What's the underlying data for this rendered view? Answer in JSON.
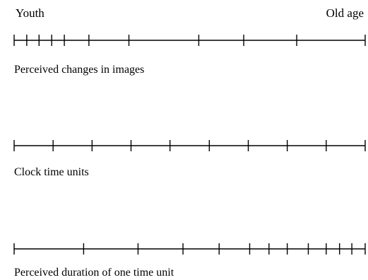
{
  "labels": {
    "start": "Youth",
    "end": "Old age"
  },
  "timelines": [
    {
      "caption": "Perceived changes in images",
      "tick_fractions": [
        0,
        0.036,
        0.071,
        0.107,
        0.143,
        0.213,
        0.327,
        0.526,
        0.654,
        0.805,
        1.0
      ]
    },
    {
      "caption": "Clock time units",
      "tick_fractions": [
        0,
        0.111,
        0.222,
        0.333,
        0.444,
        0.556,
        0.667,
        0.778,
        0.889,
        1.0
      ]
    },
    {
      "caption": "Perceived duration of one time unit",
      "tick_fractions": [
        0,
        0.198,
        0.353,
        0.481,
        0.584,
        0.671,
        0.726,
        0.778,
        0.838,
        0.889,
        0.927,
        0.962,
        1.0
      ]
    }
  ],
  "colors": {
    "line": "#000000",
    "background": "#ffffff"
  }
}
